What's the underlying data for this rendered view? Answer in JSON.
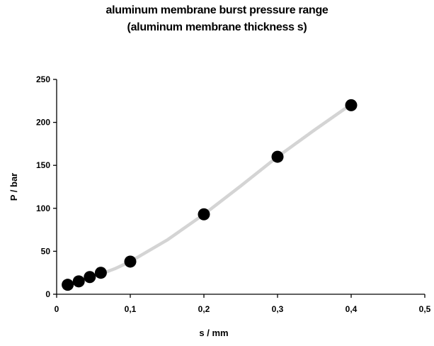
{
  "chart_data": {
    "type": "scatter",
    "title": "aluminum membrane burst pressure range",
    "subtitle": "(aluminum membrane thickness s)",
    "xlabel": "s / mm",
    "ylabel": "P / bar",
    "xlim": [
      0,
      0.5
    ],
    "ylim": [
      0,
      250
    ],
    "x_ticks": [
      0,
      0.1,
      0.2,
      0.3,
      0.4,
      0.5
    ],
    "x_tick_labels": [
      "0",
      "0,1",
      "0,2",
      "0,3",
      "0,4",
      "0,5"
    ],
    "y_ticks": [
      0,
      50,
      100,
      150,
      200,
      250
    ],
    "y_tick_labels": [
      "0",
      "50",
      "100",
      "150",
      "200",
      "250"
    ],
    "grid": false,
    "legend": "none",
    "points_color": "#000000",
    "trend_color": "#d4d4d4",
    "series": [
      {
        "x": [
          0.015,
          0.03,
          0.045,
          0.06,
          0.1,
          0.2,
          0.3,
          0.4
        ],
        "y": [
          11,
          15,
          20,
          25,
          38,
          93,
          160,
          220
        ]
      }
    ],
    "trendline": {
      "x": [
        0.015,
        0.03,
        0.045,
        0.06,
        0.08,
        0.1,
        0.15,
        0.2,
        0.25,
        0.3,
        0.35,
        0.4
      ],
      "y": [
        11,
        14.5,
        19,
        23.5,
        30,
        38,
        63,
        93,
        126,
        160,
        191,
        221
      ]
    }
  }
}
